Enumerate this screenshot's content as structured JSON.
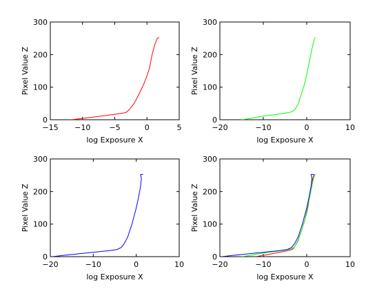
{
  "chart_data": [
    {
      "type": "line",
      "xlabel": "log Exposure X",
      "ylabel": "Pixel Value Z",
      "xlim": [
        -15,
        5
      ],
      "ylim": [
        0,
        300
      ],
      "xticks": [
        -15,
        -10,
        -5,
        0,
        5
      ],
      "yticks": [
        0,
        100,
        200,
        300
      ],
      "grid": false,
      "series": [
        {
          "color": "#ff0000",
          "points": [
            [
              -11.8,
              0
            ],
            [
              -10,
              4
            ],
            [
              -8,
              9
            ],
            [
              -6,
              14
            ],
            [
              -4.5,
              18
            ],
            [
              -3.3,
              22
            ],
            [
              -2.8,
              30
            ],
            [
              -2,
              50
            ],
            [
              -1.2,
              80
            ],
            [
              -0.5,
              110
            ],
            [
              0,
              135
            ],
            [
              0.4,
              160
            ],
            [
              0.8,
              200
            ],
            [
              1.2,
              230
            ],
            [
              1.6,
              250
            ],
            [
              1.9,
              253
            ]
          ]
        }
      ]
    },
    {
      "type": "line",
      "xlabel": "log Exposure X",
      "ylabel": "Pixel Value Z",
      "xlim": [
        -20,
        10
      ],
      "ylim": [
        0,
        300
      ],
      "xticks": [
        -20,
        -10,
        0,
        10
      ],
      "yticks": [
        0,
        100,
        200,
        300
      ],
      "grid": false,
      "series": [
        {
          "color": "#00ff00",
          "points": [
            [
              -15,
              0
            ],
            [
              -13,
              4
            ],
            [
              -11,
              9
            ],
            [
              -9,
              13
            ],
            [
              -7,
              16
            ],
            [
              -5,
              20
            ],
            [
              -3.5,
              24
            ],
            [
              -2.8,
              30
            ],
            [
              -2,
              48
            ],
            [
              -1.2,
              80
            ],
            [
              -0.5,
              110
            ],
            [
              0,
              140
            ],
            [
              0.5,
              170
            ],
            [
              1,
              205
            ],
            [
              1.4,
              230
            ],
            [
              1.8,
              250
            ],
            [
              2,
              253
            ]
          ]
        }
      ]
    },
    {
      "type": "line",
      "xlabel": "log Exposure X",
      "ylabel": "Pixel Value Z",
      "xlim": [
        -20,
        10
      ],
      "ylim": [
        0,
        300
      ],
      "xticks": [
        -20,
        -10,
        0,
        10
      ],
      "yticks": [
        0,
        100,
        200,
        300
      ],
      "grid": false,
      "series": [
        {
          "color": "#0000ff",
          "points": [
            [
              -19.5,
              0
            ],
            [
              -17,
              4
            ],
            [
              -14,
              8
            ],
            [
              -11,
              12
            ],
            [
              -8,
              16
            ],
            [
              -6,
              19
            ],
            [
              -4.5,
              22
            ],
            [
              -3.5,
              28
            ],
            [
              -2.8,
              40
            ],
            [
              -2,
              60
            ],
            [
              -1,
              100
            ],
            [
              0,
              150
            ],
            [
              0.5,
              180
            ],
            [
              1,
              215
            ],
            [
              1.2,
              240
            ],
            [
              1,
              252
            ],
            [
              1.6,
              253
            ]
          ]
        }
      ]
    },
    {
      "type": "line",
      "xlabel": "log Exposure X",
      "ylabel": "Pixel Value Z",
      "xlim": [
        -20,
        10
      ],
      "ylim": [
        0,
        300
      ],
      "xticks": [
        -20,
        -10,
        0,
        10
      ],
      "yticks": [
        0,
        100,
        200,
        300
      ],
      "grid": false,
      "series": [
        {
          "color": "#ff0000",
          "points": [
            [
              -11.8,
              0
            ],
            [
              -10,
              4
            ],
            [
              -8,
              9
            ],
            [
              -6,
              14
            ],
            [
              -4.5,
              18
            ],
            [
              -3.3,
              22
            ],
            [
              -2.8,
              30
            ],
            [
              -2,
              50
            ],
            [
              -1.2,
              80
            ],
            [
              -0.5,
              110
            ],
            [
              0,
              135
            ],
            [
              0.4,
              160
            ],
            [
              0.8,
              200
            ],
            [
              1.2,
              230
            ],
            [
              1.6,
              250
            ],
            [
              1.9,
              253
            ]
          ]
        },
        {
          "color": "#00ff00",
          "points": [
            [
              -15,
              0
            ],
            [
              -13,
              4
            ],
            [
              -11,
              9
            ],
            [
              -9,
              13
            ],
            [
              -7,
              16
            ],
            [
              -5,
              20
            ],
            [
              -3.5,
              24
            ],
            [
              -2.8,
              30
            ],
            [
              -2,
              48
            ],
            [
              -1.2,
              80
            ],
            [
              -0.5,
              110
            ],
            [
              0,
              140
            ],
            [
              0.5,
              170
            ],
            [
              1,
              205
            ],
            [
              1.4,
              230
            ],
            [
              1.8,
              250
            ],
            [
              2,
              253
            ]
          ]
        },
        {
          "color": "#0000ff",
          "points": [
            [
              -19.5,
              0
            ],
            [
              -17,
              4
            ],
            [
              -14,
              8
            ],
            [
              -11,
              12
            ],
            [
              -8,
              16
            ],
            [
              -6,
              19
            ],
            [
              -4.5,
              22
            ],
            [
              -3.5,
              28
            ],
            [
              -2.8,
              40
            ],
            [
              -2,
              60
            ],
            [
              -1,
              100
            ],
            [
              0,
              150
            ],
            [
              0.5,
              180
            ],
            [
              1,
              215
            ],
            [
              1.2,
              240
            ],
            [
              1,
              252
            ],
            [
              1.6,
              253
            ]
          ]
        }
      ]
    }
  ]
}
